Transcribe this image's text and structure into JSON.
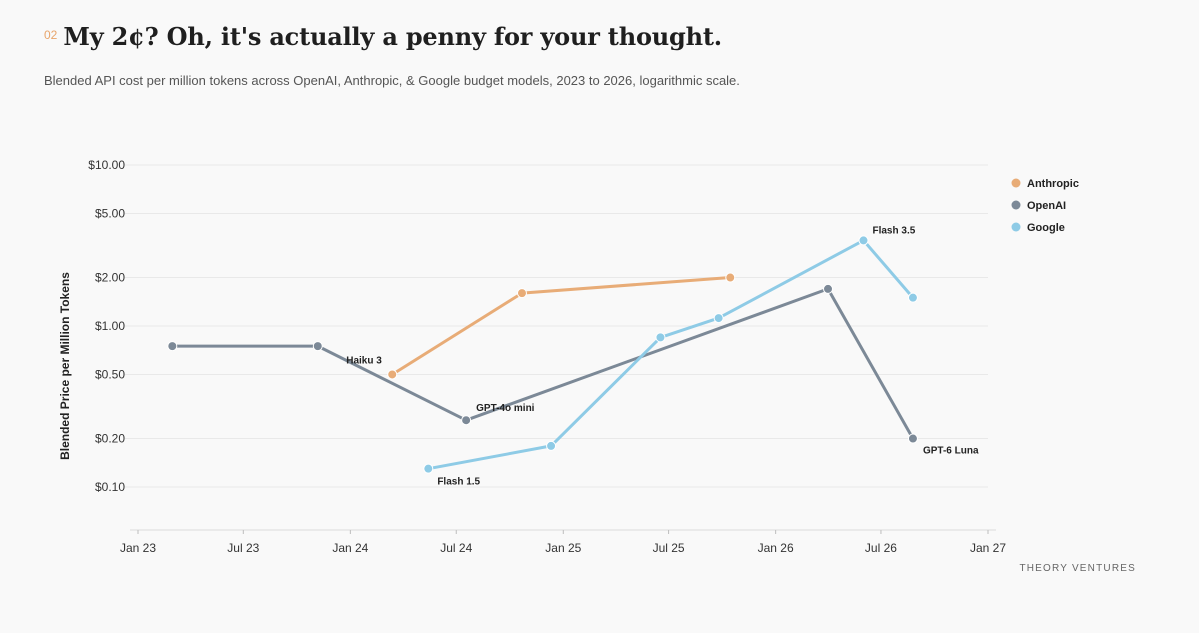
{
  "header": {
    "number": "02",
    "title": "My 2¢? Oh, it's actually a penny for your thought.",
    "subtitle": "Blended API cost per million tokens across OpenAI, Anthropic, & Google budget models, 2023 to 2026, logarithmic scale."
  },
  "footer": {
    "brand": "THEORY VENTURES"
  },
  "chart_data": {
    "type": "line",
    "title": "My 2¢? Oh, it's actually a penny for your thought.",
    "ylabel": "Blended Price per Million Tokens",
    "xlabel": "",
    "y_scale": "log",
    "ylim": [
      0.1,
      10
    ],
    "xlim": [
      "2023-01-01",
      "2027-01-01"
    ],
    "grid": true,
    "legend_position": "top-right",
    "y_ticks": [
      {
        "value": 10,
        "label": "$10.00"
      },
      {
        "value": 5,
        "label": "$5.00"
      },
      {
        "value": 2,
        "label": "$2.00"
      },
      {
        "value": 1,
        "label": "$1.00"
      },
      {
        "value": 0.5,
        "label": "$0.50"
      },
      {
        "value": 0.2,
        "label": "$0.20"
      },
      {
        "value": 0.1,
        "label": "$0.10"
      }
    ],
    "x_ticks": [
      {
        "date": "2023-01-01",
        "label": "Jan 23"
      },
      {
        "date": "2023-07-01",
        "label": "Jul 23"
      },
      {
        "date": "2024-01-01",
        "label": "Jan 24"
      },
      {
        "date": "2024-07-01",
        "label": "Jul 24"
      },
      {
        "date": "2025-01-01",
        "label": "Jan 25"
      },
      {
        "date": "2025-07-01",
        "label": "Jul 25"
      },
      {
        "date": "2026-01-01",
        "label": "Jan 26"
      },
      {
        "date": "2026-07-01",
        "label": "Jul 26"
      },
      {
        "date": "2027-01-01",
        "label": "Jan 27"
      }
    ],
    "series": [
      {
        "name": "Anthropic",
        "color": "#e8ac77",
        "points": [
          {
            "date": "2024-03-13",
            "y": 0.5,
            "label": "Haiku 3"
          },
          {
            "date": "2024-10-22",
            "y": 1.6
          },
          {
            "date": "2025-10-15",
            "y": 2.0
          }
        ]
      },
      {
        "name": "OpenAI",
        "color": "#7c8997",
        "points": [
          {
            "date": "2023-03-01",
            "y": 0.75
          },
          {
            "date": "2023-11-06",
            "y": 0.75
          },
          {
            "date": "2024-07-18",
            "y": 0.26,
            "label": "GPT-4o mini"
          },
          {
            "date": "2026-04-01",
            "y": 1.7
          },
          {
            "date": "2026-08-25",
            "y": 0.2,
            "label": "GPT-6 Luna"
          }
        ]
      },
      {
        "name": "Google",
        "color": "#8ecbe6",
        "points": [
          {
            "date": "2024-05-14",
            "y": 0.13,
            "label": "Flash 1.5"
          },
          {
            "date": "2024-12-11",
            "y": 0.18
          },
          {
            "date": "2025-06-17",
            "y": 0.85
          },
          {
            "date": "2025-09-25",
            "y": 1.12
          },
          {
            "date": "2026-06-01",
            "y": 3.4,
            "label": "Flash 3.5"
          },
          {
            "date": "2026-08-25",
            "y": 1.5
          }
        ]
      }
    ]
  }
}
